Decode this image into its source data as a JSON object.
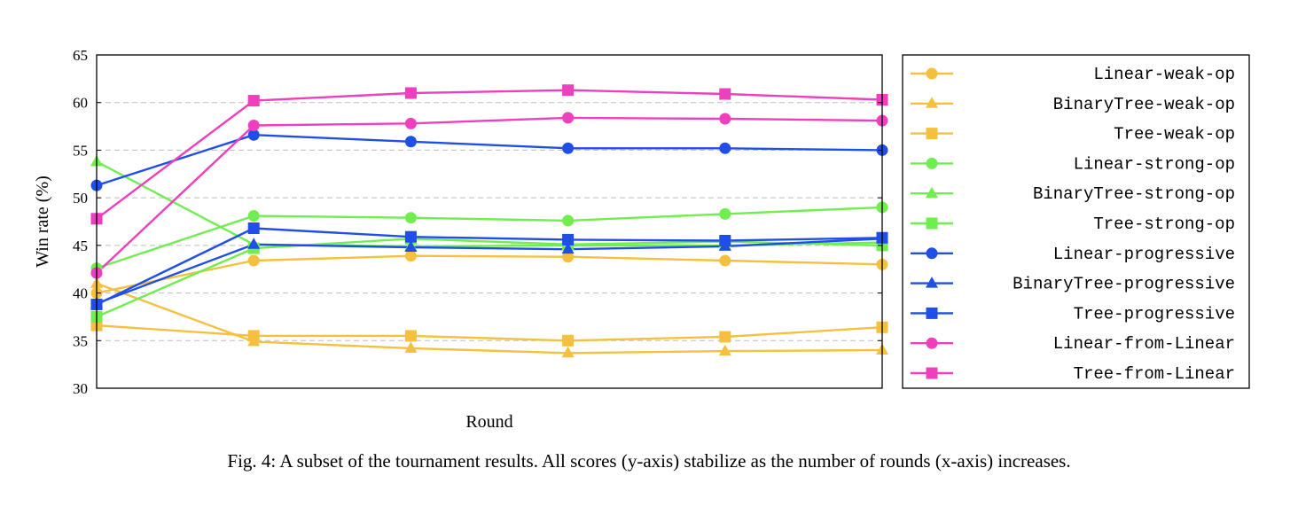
{
  "caption": "Fig. 4: A subset of the tournament results. All scores (y-axis) stabilize as the number of rounds (x-axis) increases.",
  "chart_data": {
    "type": "line",
    "title": "",
    "xlabel": "Round",
    "ylabel": "Win rate (%)",
    "xlim": [
      0,
      100
    ],
    "ylim": [
      30,
      65
    ],
    "yticks": [
      30,
      35,
      40,
      45,
      50,
      55,
      60,
      65
    ],
    "grid": "horizontal dashed",
    "legend_placement": "right outside",
    "colors": {
      "weak": "#f5c040",
      "strong": "#70ee50",
      "progressive": "#1f4fe6",
      "from_linear": "#ee3fbe"
    },
    "x": [
      0,
      20,
      40,
      60,
      80,
      100
    ],
    "series": [
      {
        "name": "Linear-weak-op",
        "color": "#f5c040",
        "marker": "circle",
        "values": [
          40.0,
          43.4,
          43.9,
          43.8,
          43.4,
          43.0
        ]
      },
      {
        "name": "BinaryTree-weak-op",
        "color": "#f5c040",
        "marker": "triangle",
        "values": [
          41.0,
          34.9,
          34.2,
          33.7,
          33.9,
          34.0
        ]
      },
      {
        "name": "Tree-weak-op",
        "color": "#f5c040",
        "marker": "square",
        "values": [
          36.6,
          35.5,
          35.5,
          35.0,
          35.4,
          36.4
        ]
      },
      {
        "name": "Linear-strong-op",
        "color": "#70ee50",
        "marker": "circle",
        "values": [
          42.6,
          48.1,
          47.9,
          47.6,
          48.3,
          49.0
        ]
      },
      {
        "name": "BinaryTree-strong-op",
        "color": "#70ee50",
        "marker": "triangle",
        "values": [
          53.8,
          45.1,
          44.9,
          45.0,
          45.0,
          45.3
        ]
      },
      {
        "name": "Tree-strong-op",
        "color": "#70ee50",
        "marker": "square",
        "values": [
          37.5,
          44.7,
          45.7,
          45.1,
          45.4,
          45.0
        ]
      },
      {
        "name": "Linear-progressive",
        "color": "#1f4fe6",
        "marker": "circle",
        "values": [
          51.3,
          56.6,
          55.9,
          55.2,
          55.2,
          55.0
        ]
      },
      {
        "name": "BinaryTree-progressive",
        "color": "#1f4fe6",
        "marker": "triangle",
        "values": [
          38.9,
          45.1,
          44.8,
          44.6,
          44.9,
          45.7
        ]
      },
      {
        "name": "Tree-progressive",
        "color": "#1f4fe6",
        "marker": "square",
        "values": [
          38.8,
          46.8,
          45.9,
          45.6,
          45.5,
          45.8
        ]
      },
      {
        "name": "Linear-from-Linear",
        "color": "#ee3fbe",
        "marker": "circle",
        "values": [
          42.1,
          57.6,
          57.8,
          58.4,
          58.3,
          58.1
        ]
      },
      {
        "name": "Tree-from-Linear",
        "color": "#ee3fbe",
        "marker": "square",
        "values": [
          47.8,
          60.2,
          61.0,
          61.3,
          60.9,
          60.3
        ]
      }
    ]
  }
}
